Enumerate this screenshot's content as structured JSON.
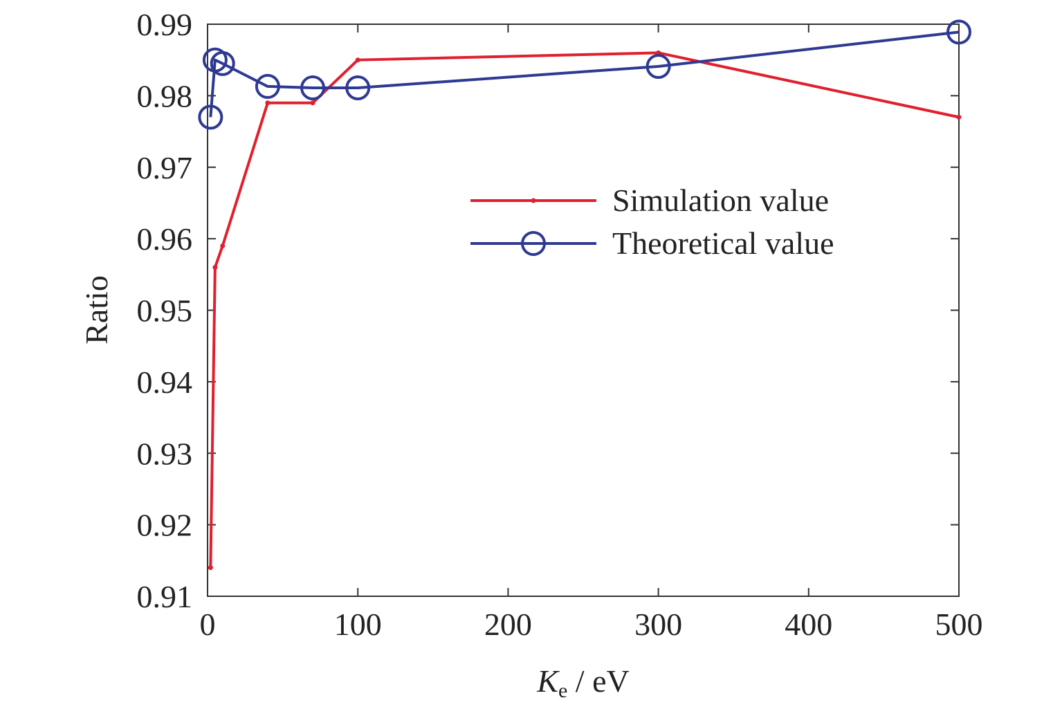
{
  "chart_data": {
    "type": "line",
    "xlabel": {
      "main": "K",
      "sub": "e",
      "rest": " / eV"
    },
    "ylabel": "Ratio",
    "xlim": [
      0,
      500
    ],
    "ylim": [
      0.91,
      0.99
    ],
    "x_ticks": [
      0,
      100,
      200,
      300,
      400,
      500
    ],
    "x_tick_labels": [
      "0",
      "100",
      "200",
      "300",
      "400",
      "500"
    ],
    "y_ticks": [
      0.91,
      0.92,
      0.93,
      0.94,
      0.95,
      0.96,
      0.97,
      0.98,
      0.99
    ],
    "y_tick_labels": [
      "0.91",
      "0.92",
      "0.93",
      "0.94",
      "0.95",
      "0.96",
      "0.97",
      "0.98",
      "0.99"
    ],
    "grid": false,
    "legend_position": "right-middle",
    "series": [
      {
        "name": "Simulation value",
        "color": "#e0202e",
        "marker": "dot",
        "x": [
          2,
          5,
          10,
          40,
          70,
          100,
          300,
          500
        ],
        "y": [
          0.914,
          0.956,
          0.959,
          0.979,
          0.979,
          0.985,
          0.986,
          0.977
        ]
      },
      {
        "name": "Theoretical value",
        "color": "#2e3a92",
        "marker": "circle",
        "x": [
          2,
          5,
          10,
          40,
          70,
          100,
          300,
          500
        ],
        "y": [
          0.977,
          0.985,
          0.9845,
          0.9813,
          0.9811,
          0.9811,
          0.9841,
          0.9889
        ]
      }
    ]
  }
}
